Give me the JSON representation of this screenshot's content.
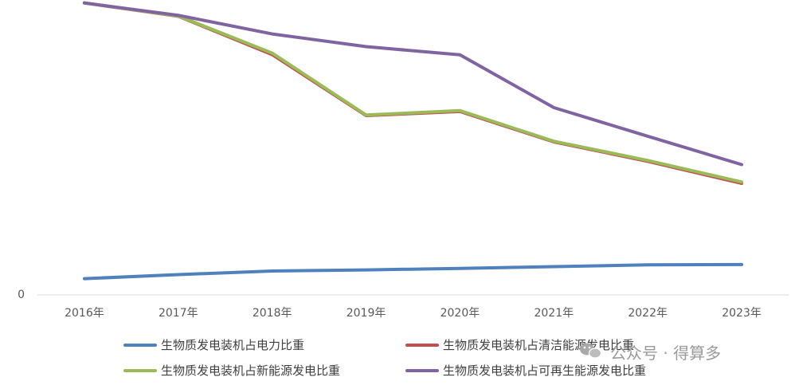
{
  "chart_data": {
    "type": "line",
    "categories": [
      "2016年",
      "2017年",
      "2018年",
      "2019年",
      "2020年",
      "2021年",
      "2022年",
      "2023年"
    ],
    "y_tick_label": "0",
    "ylim": [
      0,
      100
    ],
    "grid": false,
    "legend_position": "bottom",
    "series": [
      {
        "name": "生物质发电装机占电力比重",
        "color": "#4f81bd",
        "values": [
          5.5,
          6.9,
          8.1,
          8.5,
          9.0,
          9.6,
          10.2,
          10.3
        ]
      },
      {
        "name": "生物质发电装机占清洁能源发电比重",
        "color": "#c0504d",
        "values": [
          99,
          94.5,
          81.5,
          60.8,
          62.2,
          51.9,
          45.3,
          37.8
        ]
      },
      {
        "name": "生物质发电装机占新能源发电比重",
        "color": "#9bbb59",
        "values": [
          99,
          94.6,
          82,
          61,
          62.5,
          52.1,
          45.6,
          38.3
        ]
      },
      {
        "name": "生物质发电装机占可再生能源发电比重",
        "color": "#8064a2",
        "values": [
          99,
          94.8,
          88.5,
          84.2,
          81.4,
          63.5,
          53.8,
          44.2
        ]
      }
    ]
  },
  "watermark": {
    "icon": "wechat-icon",
    "text": "公众号 · 得算多"
  }
}
